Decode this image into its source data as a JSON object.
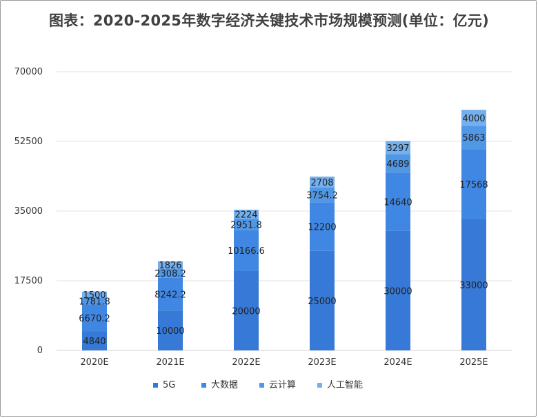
{
  "title": "图表：2020-2025年数字经济关键技术市场规模预测(单位：亿元)",
  "chart_data": {
    "type": "bar",
    "stacked": true,
    "title": "图表：2020-2025年数字经济关键技术市场规模预测(单位：亿元)",
    "xlabel": "",
    "ylabel": "",
    "categories": [
      "2020E",
      "2021E",
      "2022E",
      "2023E",
      "2024E",
      "2025E"
    ],
    "ylim": [
      0,
      70000
    ],
    "yticks": [
      0,
      17500,
      35000,
      52500,
      70000
    ],
    "grid": true,
    "legend_position": "bottom",
    "series": [
      {
        "name": "5G",
        "color": "#3779d6",
        "values": [
          4840,
          10000,
          20000,
          25000,
          30000,
          33000
        ],
        "labels": [
          "4840",
          "10000",
          "20000",
          "25000",
          "30000",
          "33000"
        ]
      },
      {
        "name": "大数据",
        "color": "#3f87e2",
        "values": [
          6670.2,
          8242.2,
          10166.6,
          12200,
          14640,
          17568
        ],
        "labels": [
          "6670.2",
          "8242.2",
          "10166.6",
          "12200",
          "14640",
          "17568"
        ]
      },
      {
        "name": "云计算",
        "color": "#5097e6",
        "values": [
          1781.8,
          2308.2,
          2951.8,
          3754.2,
          4689,
          5863
        ],
        "labels": [
          "1781.8",
          "2308.2",
          "2951.8",
          "3754.2",
          "4689",
          "5863"
        ]
      },
      {
        "name": "人工智能",
        "color": "#74afee",
        "values": [
          1500,
          1826,
          2224,
          2708,
          3297,
          4000
        ],
        "labels": [
          "1500",
          "1826",
          "2224",
          "2708",
          "3297",
          "4000"
        ]
      }
    ]
  }
}
